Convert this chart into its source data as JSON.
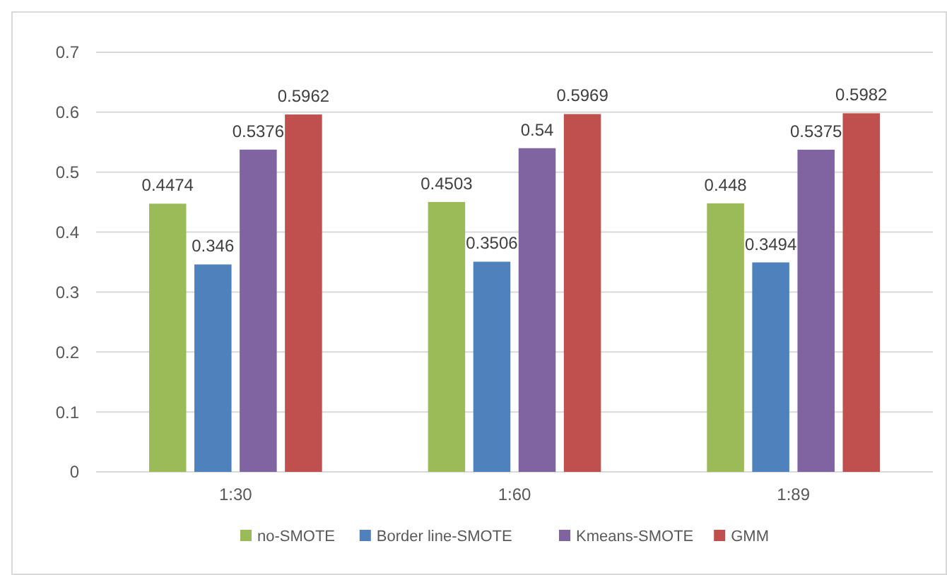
{
  "chart_data": {
    "type": "bar",
    "categories": [
      "1:30",
      "1:60",
      "1:89"
    ],
    "series": [
      {
        "name": "no-SMOTE",
        "color": "#9bbb59",
        "values": [
          0.4474,
          0.4503,
          0.448
        ]
      },
      {
        "name": "Border line-SMOTE",
        "color": "#4f81bd",
        "values": [
          0.346,
          0.3506,
          0.3494
        ]
      },
      {
        "name": "Kmeans-SMOTE",
        "color": "#8064a2",
        "values": [
          0.5376,
          0.54,
          0.5375
        ]
      },
      {
        "name": "GMM",
        "color": "#c0504d",
        "values": [
          0.5962,
          0.5969,
          0.5982
        ]
      }
    ],
    "ylim": [
      0,
      0.7
    ],
    "yticks": [
      0,
      0.1,
      0.2,
      0.3,
      0.4,
      0.5,
      0.6,
      0.7
    ],
    "grid": "y",
    "legend": "bottom",
    "data_labels": true
  }
}
